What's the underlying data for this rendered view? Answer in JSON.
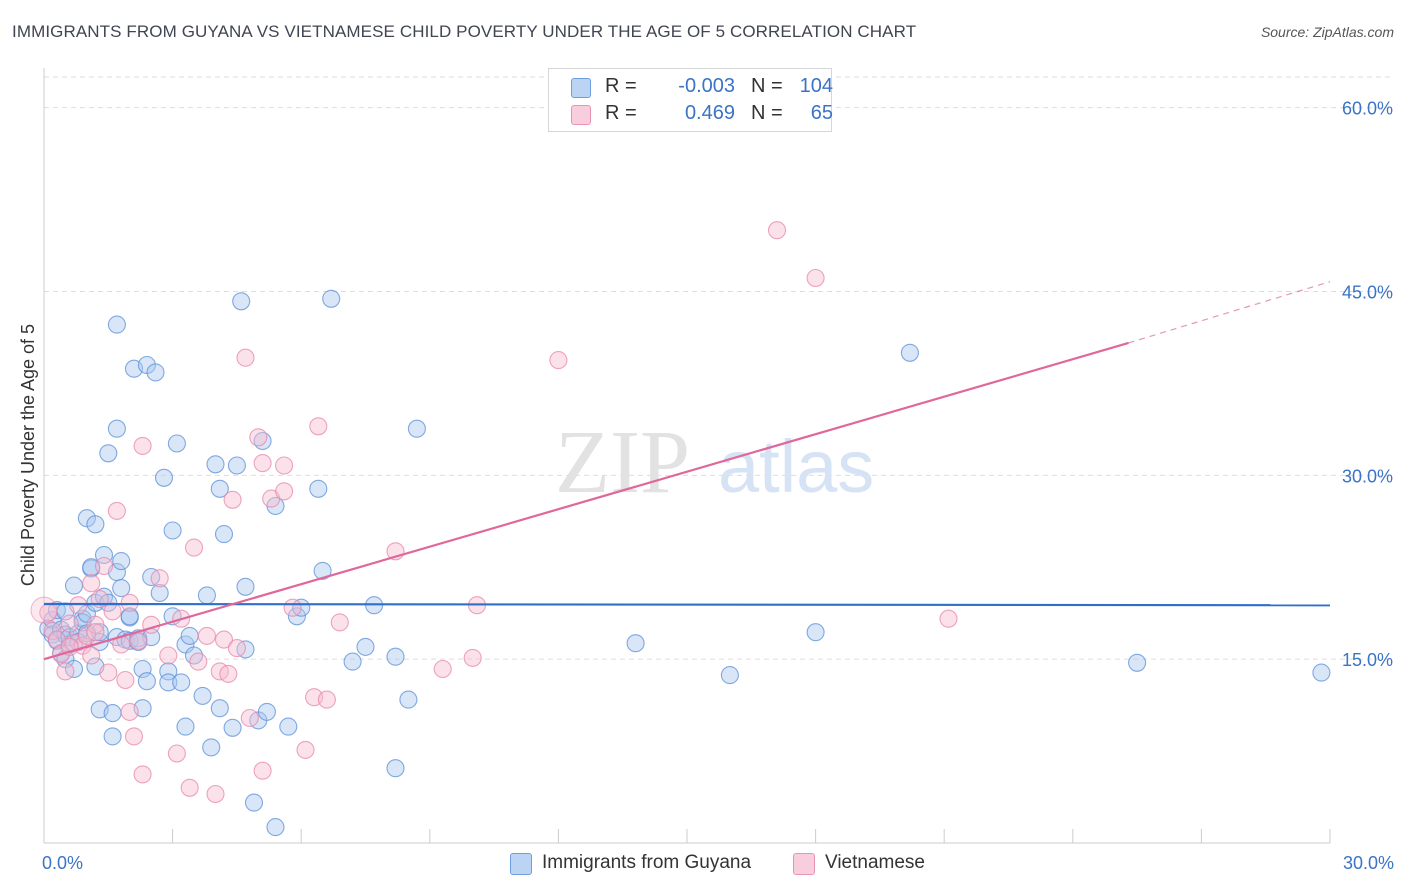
{
  "title": "IMMIGRANTS FROM GUYANA VS VIETNAMESE CHILD POVERTY UNDER THE AGE OF 5 CORRELATION CHART",
  "source": "Source: ZipAtlas.com",
  "watermark": {
    "zip": "ZIP",
    "atlas": "atlas"
  },
  "legend": {
    "rows": [
      {
        "r_label": "R =",
        "r_value": "-0.003",
        "n_label": "N =",
        "n_value": "104"
      },
      {
        "r_label": "R =",
        "r_value": "0.469",
        "n_label": "N =",
        "n_value": "65"
      }
    ]
  },
  "colors": {
    "blue_fill": "#a9c8f0",
    "blue_stroke": "#5b8fd8",
    "blue_line": "#2f6fc9",
    "pink_fill": "#f6bdd0",
    "pink_stroke": "#e886a9",
    "pink_line": "#e0679a",
    "grid": "#dddddd",
    "tick_label": "#3b73c6"
  },
  "chart_data": {
    "type": "scatter",
    "title": "IMMIGRANTS FROM GUYANA VS VIETNAMESE CHILD POVERTY UNDER THE AGE OF 5 CORRELATION CHART",
    "xlabel": "",
    "ylabel": "Child Poverty Under the Age of 5",
    "xlim": [
      0,
      30
    ],
    "ylim": [
      0,
      62.5
    ],
    "x_tick_labels": [
      {
        "value": 0,
        "label": "0.0%"
      },
      {
        "value": 30,
        "label": "30.0%"
      }
    ],
    "y_tick_labels": [
      {
        "value": 15,
        "label": "15.0%"
      },
      {
        "value": 30,
        "label": "30.0%"
      },
      {
        "value": 45,
        "label": "45.0%"
      },
      {
        "value": 60,
        "label": "60.0%"
      }
    ],
    "x_minor_ticks": [
      0,
      3,
      6,
      9,
      12,
      15,
      18,
      21,
      24,
      27,
      30
    ],
    "grid": true,
    "legend_position": "top-center",
    "series": [
      {
        "name": "Immigrants from Guyana",
        "color": "#a9c8f0",
        "trend": {
          "x": [
            0,
            30
          ],
          "y": [
            19.5,
            19.4
          ],
          "style": "solid"
        },
        "points": [
          [
            0.1,
            17.5
          ],
          [
            0.2,
            18.2
          ],
          [
            0.2,
            17.0
          ],
          [
            0.3,
            16.5
          ],
          [
            0.3,
            19.0
          ],
          [
            0.4,
            17.4
          ],
          [
            0.4,
            15.5
          ],
          [
            0.5,
            15.0
          ],
          [
            0.5,
            17.0
          ],
          [
            0.6,
            16.2
          ],
          [
            0.6,
            16.8
          ],
          [
            0.7,
            14.2
          ],
          [
            0.7,
            21.0
          ],
          [
            0.8,
            17.1
          ],
          [
            0.8,
            16.4
          ],
          [
            0.9,
            18.3
          ],
          [
            0.9,
            18.0
          ],
          [
            1.0,
            26.5
          ],
          [
            1.0,
            18.7
          ],
          [
            1.1,
            22.4
          ],
          [
            1.1,
            22.5
          ],
          [
            1.2,
            26.0
          ],
          [
            1.2,
            14.4
          ],
          [
            1.2,
            19.6
          ],
          [
            1.3,
            10.9
          ],
          [
            1.3,
            16.4
          ],
          [
            1.4,
            23.5
          ],
          [
            1.4,
            20.1
          ],
          [
            1.5,
            31.8
          ],
          [
            1.5,
            19.6
          ],
          [
            1.6,
            10.6
          ],
          [
            1.6,
            8.7
          ],
          [
            1.7,
            22.1
          ],
          [
            1.7,
            16.8
          ],
          [
            1.7,
            42.3
          ],
          [
            1.7,
            33.8
          ],
          [
            1.8,
            23.0
          ],
          [
            1.8,
            20.8
          ],
          [
            1.9,
            16.6
          ],
          [
            2.0,
            16.5
          ],
          [
            2.0,
            18.4
          ],
          [
            2.0,
            18.5
          ],
          [
            2.1,
            38.7
          ],
          [
            2.2,
            16.7
          ],
          [
            2.3,
            14.2
          ],
          [
            2.3,
            11.0
          ],
          [
            2.4,
            13.2
          ],
          [
            2.4,
            39.0
          ],
          [
            2.5,
            16.8
          ],
          [
            2.5,
            21.7
          ],
          [
            2.6,
            38.4
          ],
          [
            2.7,
            20.4
          ],
          [
            2.8,
            29.8
          ],
          [
            2.9,
            14.0
          ],
          [
            2.9,
            13.1
          ],
          [
            3.0,
            18.5
          ],
          [
            3.0,
            25.5
          ],
          [
            3.1,
            32.6
          ],
          [
            3.2,
            13.1
          ],
          [
            3.3,
            9.5
          ],
          [
            3.3,
            16.2
          ],
          [
            3.4,
            16.9
          ],
          [
            3.5,
            15.3
          ],
          [
            3.7,
            12.0
          ],
          [
            3.8,
            20.2
          ],
          [
            3.9,
            7.8
          ],
          [
            4.0,
            30.9
          ],
          [
            4.1,
            28.9
          ],
          [
            4.1,
            11.0
          ],
          [
            4.2,
            25.2
          ],
          [
            4.4,
            9.4
          ],
          [
            4.5,
            30.8
          ],
          [
            4.6,
            44.2
          ],
          [
            4.7,
            15.8
          ],
          [
            4.7,
            20.9
          ],
          [
            4.9,
            3.3
          ],
          [
            5.0,
            10.0
          ],
          [
            5.1,
            32.8
          ],
          [
            5.2,
            10.7
          ],
          [
            5.4,
            1.3
          ],
          [
            5.4,
            27.5
          ],
          [
            5.7,
            9.5
          ],
          [
            5.9,
            18.5
          ],
          [
            6.0,
            19.2
          ],
          [
            6.4,
            28.9
          ],
          [
            6.5,
            22.2
          ],
          [
            6.7,
            44.4
          ],
          [
            7.2,
            14.8
          ],
          [
            7.5,
            16.0
          ],
          [
            7.7,
            19.4
          ],
          [
            8.2,
            15.2
          ],
          [
            8.2,
            6.1
          ],
          [
            8.5,
            11.7
          ],
          [
            8.7,
            33.8
          ],
          [
            13.8,
            16.3
          ],
          [
            16.0,
            13.7
          ],
          [
            18.0,
            17.2
          ],
          [
            20.2,
            40.0
          ],
          [
            25.5,
            14.7
          ],
          [
            29.8,
            13.9
          ],
          [
            1.3,
            17.2
          ],
          [
            0.5,
            18.9
          ],
          [
            2.2,
            16.4
          ],
          [
            1.0,
            17.1
          ]
        ]
      },
      {
        "name": "Vietnamese",
        "color": "#f6bdd0",
        "trend": {
          "x": [
            0,
            25.3
          ],
          "y": [
            15.0,
            40.8
          ],
          "style": "solid",
          "dashed_extension": {
            "x": [
              25.3,
              30
            ],
            "y": [
              40.8,
              45.8
            ]
          }
        },
        "points": [
          [
            0.1,
            18.8
          ],
          [
            0.2,
            17.3
          ],
          [
            0.3,
            16.6
          ],
          [
            0.4,
            15.4
          ],
          [
            0.5,
            14.0
          ],
          [
            0.6,
            17.9
          ],
          [
            0.7,
            16.3
          ],
          [
            0.8,
            19.4
          ],
          [
            0.9,
            16.1
          ],
          [
            1.0,
            16.9
          ],
          [
            1.1,
            21.2
          ],
          [
            1.1,
            15.3
          ],
          [
            1.2,
            17.8
          ],
          [
            1.3,
            19.9
          ],
          [
            1.4,
            22.6
          ],
          [
            1.5,
            13.9
          ],
          [
            1.6,
            18.9
          ],
          [
            1.7,
            27.1
          ],
          [
            1.8,
            16.2
          ],
          [
            1.9,
            13.3
          ],
          [
            2.0,
            19.6
          ],
          [
            2.0,
            10.7
          ],
          [
            2.1,
            8.7
          ],
          [
            2.2,
            16.5
          ],
          [
            2.3,
            5.6
          ],
          [
            2.3,
            32.4
          ],
          [
            2.5,
            17.8
          ],
          [
            2.7,
            21.6
          ],
          [
            2.9,
            15.3
          ],
          [
            3.1,
            7.3
          ],
          [
            3.2,
            18.3
          ],
          [
            3.4,
            4.5
          ],
          [
            3.5,
            24.1
          ],
          [
            3.6,
            14.8
          ],
          [
            3.8,
            16.9
          ],
          [
            4.0,
            4.0
          ],
          [
            4.1,
            14.0
          ],
          [
            4.2,
            16.6
          ],
          [
            4.3,
            13.8
          ],
          [
            4.4,
            28.0
          ],
          [
            4.5,
            15.9
          ],
          [
            4.7,
            39.6
          ],
          [
            4.8,
            10.2
          ],
          [
            5.0,
            33.1
          ],
          [
            5.1,
            31.0
          ],
          [
            5.1,
            5.9
          ],
          [
            5.3,
            28.1
          ],
          [
            5.6,
            30.8
          ],
          [
            5.6,
            28.7
          ],
          [
            5.8,
            19.2
          ],
          [
            6.1,
            7.6
          ],
          [
            6.3,
            11.9
          ],
          [
            6.4,
            34.0
          ],
          [
            6.6,
            11.7
          ],
          [
            6.9,
            18.0
          ],
          [
            8.2,
            23.8
          ],
          [
            9.3,
            14.2
          ],
          [
            10.0,
            15.1
          ],
          [
            10.1,
            19.4
          ],
          [
            12.0,
            39.4
          ],
          [
            17.1,
            50.0
          ],
          [
            18.0,
            46.1
          ],
          [
            21.1,
            18.3
          ],
          [
            1.2,
            17.2
          ],
          [
            0.6,
            16.0
          ]
        ]
      }
    ]
  },
  "bottom_legend": {
    "items": [
      {
        "label": "Immigrants from Guyana"
      },
      {
        "label": "Vietnamese"
      }
    ]
  }
}
